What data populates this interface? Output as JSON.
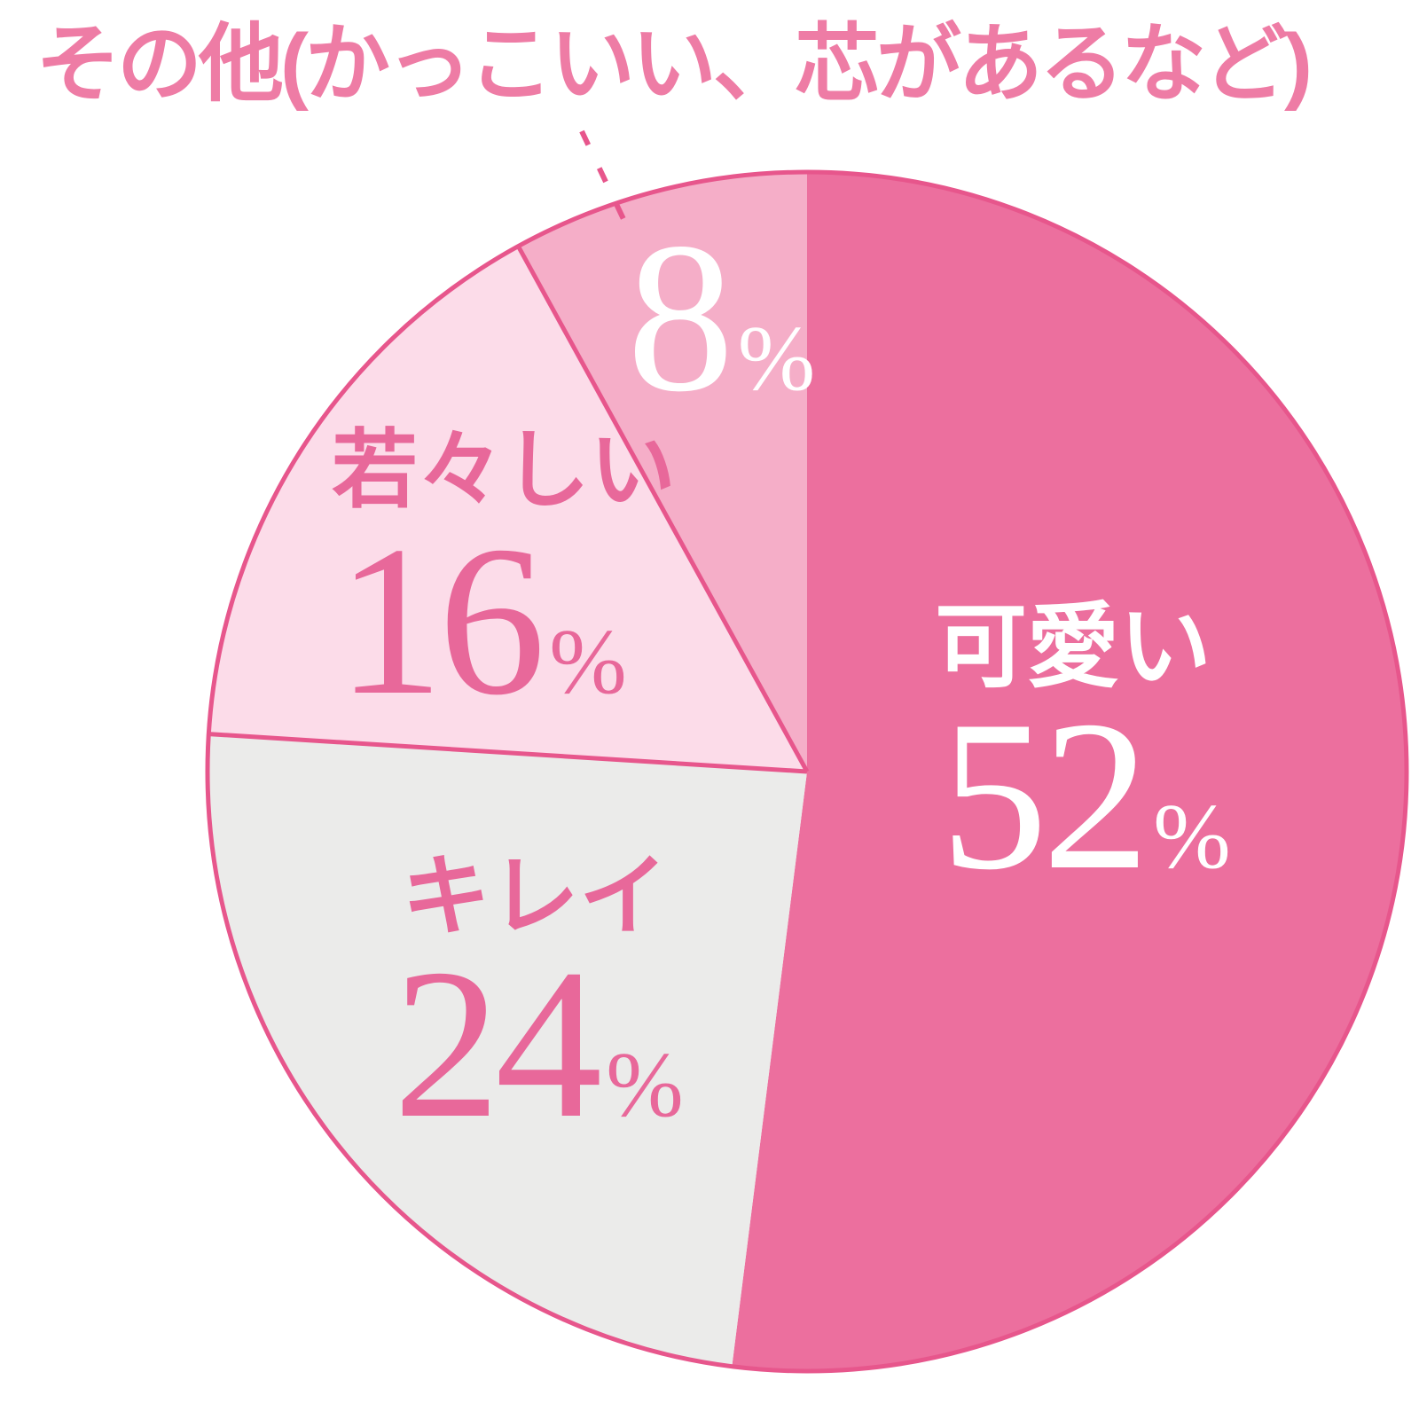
{
  "chart_data": {
    "type": "pie",
    "direction": "clockwise",
    "start_angle_deg": 0,
    "total": 100,
    "unit": "%",
    "legend_position": "none",
    "outline_color": "#e7568c",
    "title_color": "#ee7ca5",
    "slices": [
      {
        "label": "可愛い",
        "value": 52,
        "unit": "%",
        "color": "#ec6f9e",
        "label_color": "#ffffff"
      },
      {
        "label": "キレイ",
        "value": 24,
        "unit": "%",
        "color": "#ebebea",
        "label_color": "#e8689a"
      },
      {
        "label": "若々しい",
        "value": 16,
        "unit": "%",
        "color": "#fcdce9",
        "label_color": "#e8689a"
      },
      {
        "label": "その他(かっこいい、芯があるなど)",
        "value": 8,
        "unit": "%",
        "color": "#f5aec8",
        "label_color": "#ffffff"
      }
    ]
  }
}
